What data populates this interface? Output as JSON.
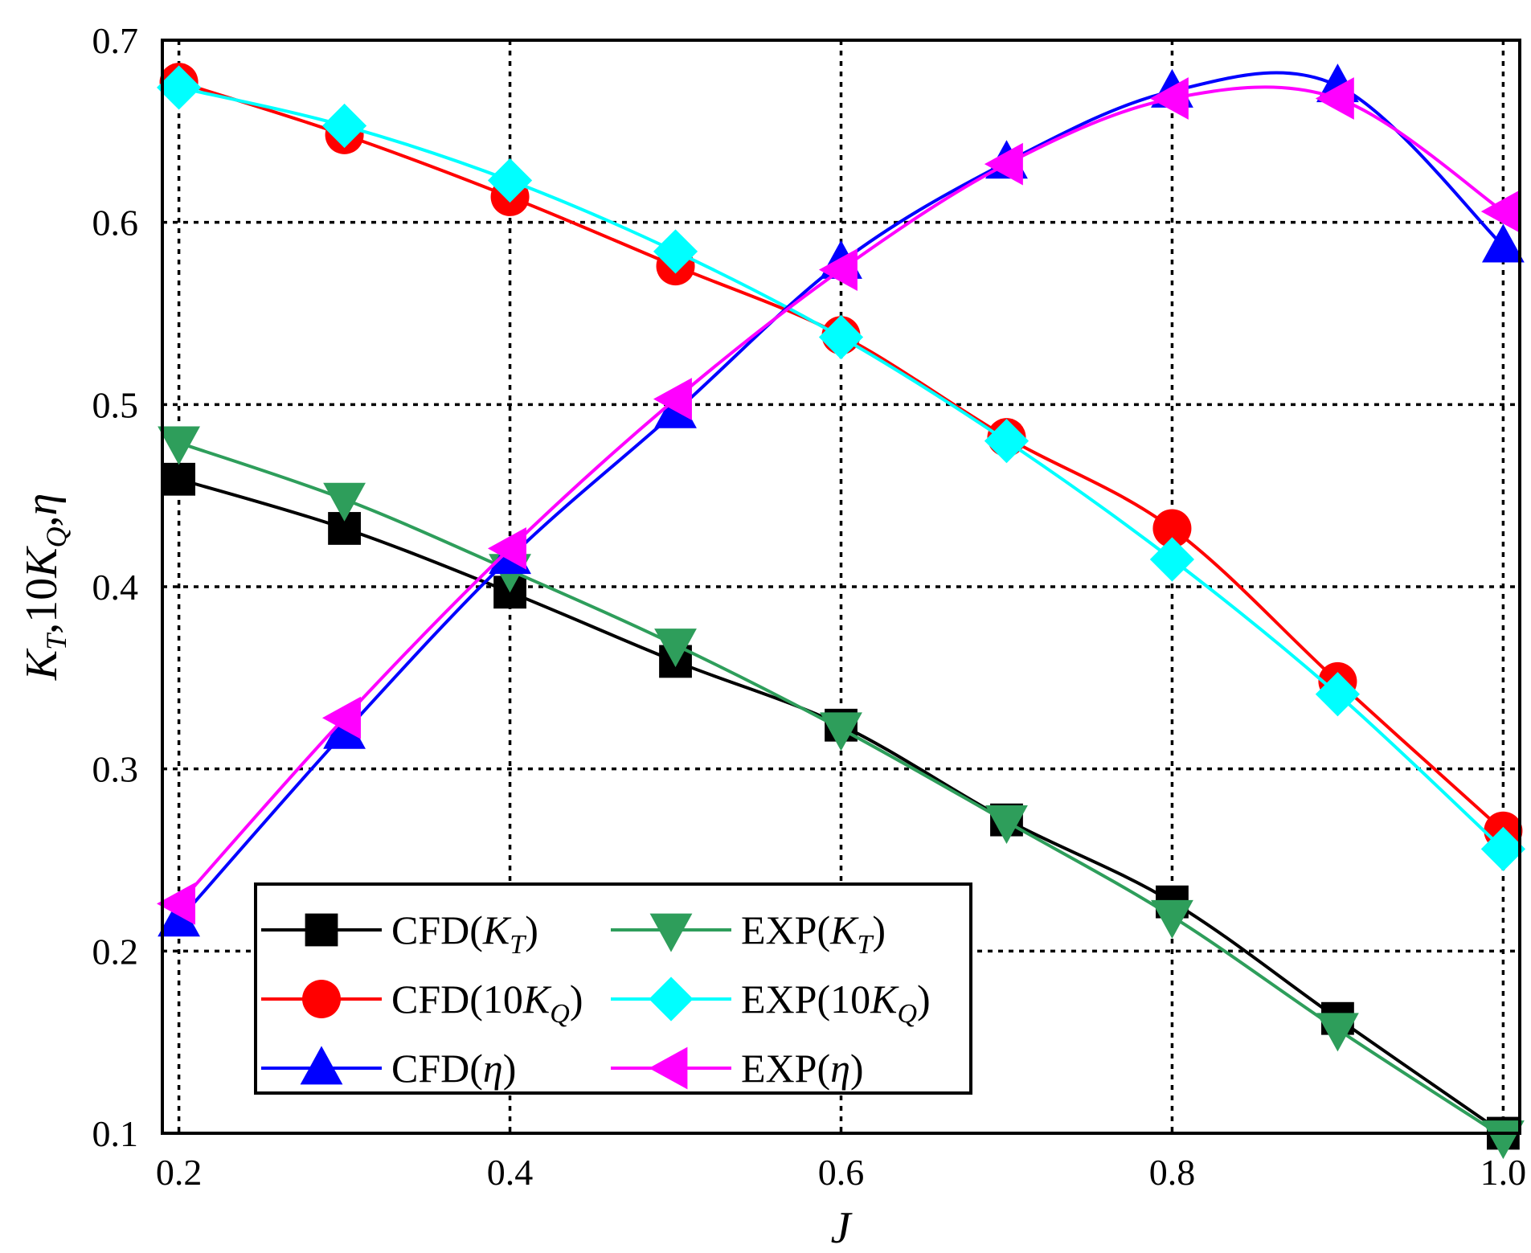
{
  "chart_data": {
    "type": "line",
    "xlabel": "J",
    "ylabel": "K_T,10K_Q,η",
    "xlim": [
      0.19,
      1.01
    ],
    "ylim": [
      0.1,
      0.7
    ],
    "x_ticks": [
      "0.2",
      "0.4",
      "0.6",
      "0.8",
      "1.0"
    ],
    "x_tick_values": [
      0.2,
      0.4,
      0.6,
      0.8,
      1.0
    ],
    "y_ticks": [
      "0.1",
      "0.2",
      "0.3",
      "0.4",
      "0.5",
      "0.6",
      "0.7"
    ],
    "y_tick_values": [
      0.1,
      0.2,
      0.3,
      0.4,
      0.5,
      0.6,
      0.7
    ],
    "grid": true,
    "legend_position": "bottom-left",
    "x": [
      0.2,
      0.3,
      0.4,
      0.5,
      0.6,
      0.7,
      0.8,
      0.9,
      1.0
    ],
    "series": [
      {
        "name": "CFD(K_T)",
        "base": "CFD(",
        "italic": "K",
        "sub": "T",
        "tail": ")",
        "color": "#000000",
        "marker": "square",
        "values": [
          0.459,
          0.432,
          0.397,
          0.359,
          0.324,
          0.272,
          0.227,
          0.163,
          0.1
        ]
      },
      {
        "name": "EXP(K_T)",
        "base": "EXP(",
        "italic": "K",
        "sub": "T",
        "tail": ")",
        "color": "#2e9e5b",
        "marker": "triangle-down",
        "values": [
          0.479,
          0.448,
          0.409,
          0.368,
          0.322,
          0.271,
          0.219,
          0.157,
          0.098
        ]
      },
      {
        "name": "CFD(10K_Q)",
        "base": "CFD(10",
        "italic": "K",
        "sub": "Q",
        "tail": ")",
        "color": "#ff0000",
        "marker": "circle",
        "values": [
          0.677,
          0.648,
          0.614,
          0.576,
          0.538,
          0.482,
          0.432,
          0.348,
          0.266
        ]
      },
      {
        "name": "EXP(10K_Q)",
        "base": "EXP(10",
        "italic": "K",
        "sub": "Q",
        "tail": ")",
        "color": "#00ffff",
        "marker": "diamond",
        "values": [
          0.674,
          0.653,
          0.623,
          0.584,
          0.537,
          0.48,
          0.415,
          0.341,
          0.256
        ]
      },
      {
        "name": "CFD(η)",
        "base": "CFD(",
        "italic": "η",
        "sub": "",
        "tail": ")",
        "color": "#0000ff",
        "marker": "triangle-up",
        "values": [
          0.217,
          0.32,
          0.416,
          0.496,
          0.578,
          0.633,
          0.672,
          0.675,
          0.587
        ]
      },
      {
        "name": "EXP(η)",
        "base": "EXP(",
        "italic": "η",
        "sub": "",
        "tail": ")",
        "color": "#ff00ff",
        "marker": "triangle-left",
        "values": [
          0.226,
          0.328,
          0.421,
          0.503,
          0.574,
          0.632,
          0.668,
          0.668,
          0.606
        ]
      }
    ]
  }
}
